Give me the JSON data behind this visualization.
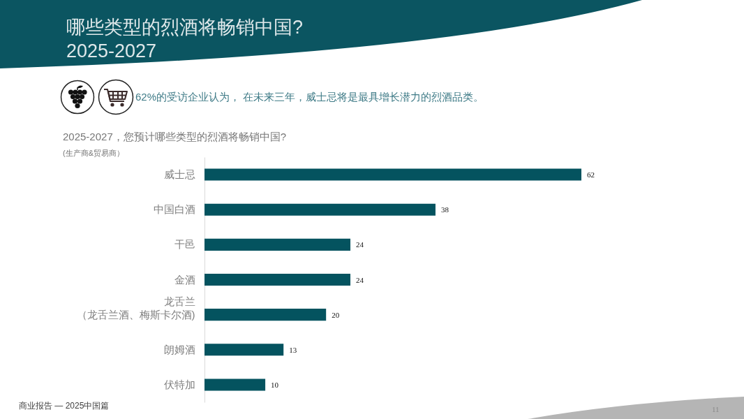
{
  "chart_data": {
    "type": "bar",
    "orientation": "horizontal",
    "title": "哪些类型的烈酒将畅销中国?\n2025-2027",
    "subtitle": "2025-2027，您预计哪些类型的烈酒将畅销中国?",
    "annotations": [
      "62%的受访企业认为， 在未来三年，威士忌将是最具增长潜力的烈酒品类。",
      "(生产商&贸易商）",
      "商业报告 — 2025中国篇",
      "11"
    ],
    "categories": [
      "威士忌",
      "中国白酒",
      "干邑",
      "金酒",
      "龙舌兰（龙舌兰酒、梅斯卡尔酒)",
      "朗姆酒",
      "伏特加"
    ],
    "series": [
      {
        "color": "#04535f",
        "values": [
          62,
          38,
          24,
          24,
          20,
          13,
          10
        ]
      }
    ],
    "data_labels": true,
    "tick_labels": "y"
  }
}
